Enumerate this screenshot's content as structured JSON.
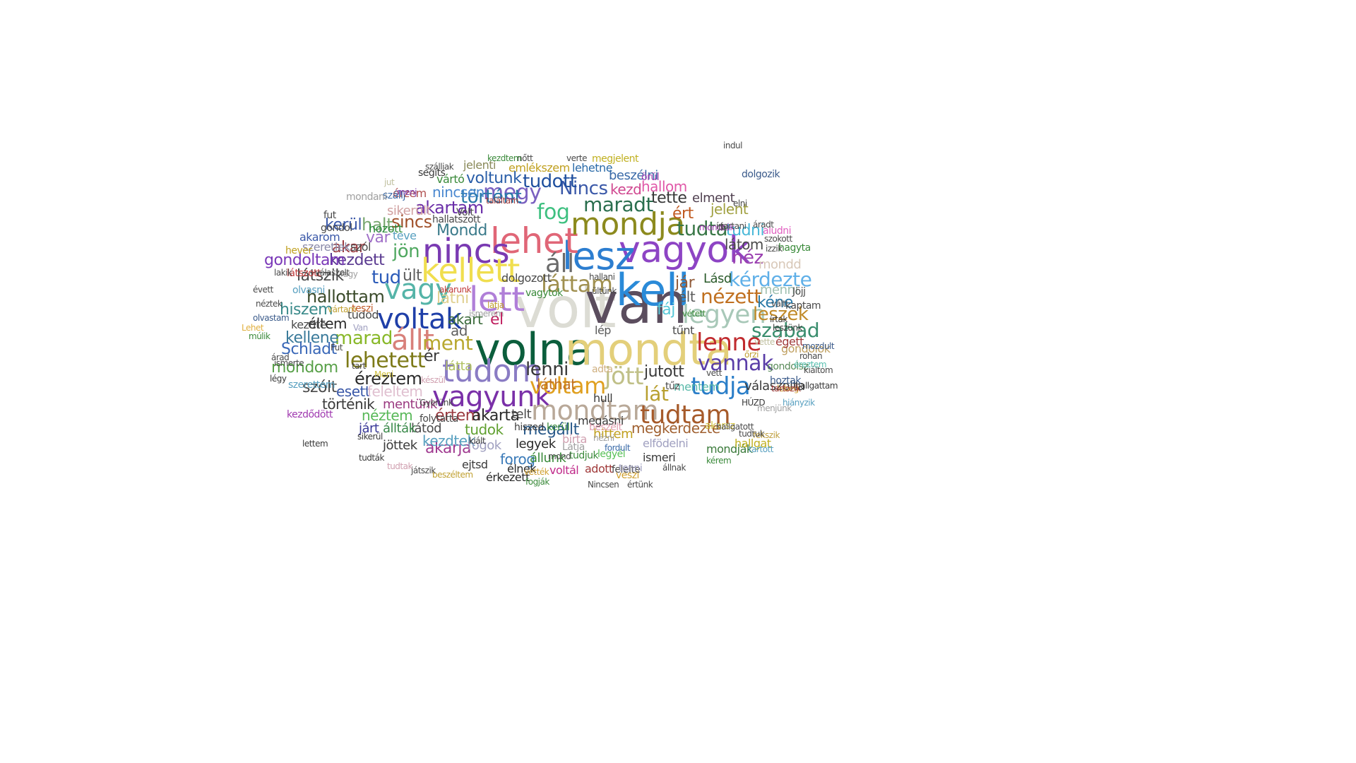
{
  "words": [
    {
      "text": "volt",
      "color": "#dcdcd4"
    },
    {
      "text": "van",
      "color": "#5b4d5e"
    },
    {
      "text": "volna",
      "color": "#0b5e3c"
    },
    {
      "text": "mondta",
      "color": "#e3cf7a"
    },
    {
      "text": "kell",
      "color": "#2a8ad8"
    },
    {
      "text": "vagyok",
      "color": "#8d44c4"
    },
    {
      "text": "lesz",
      "color": "#2d7ed0"
    },
    {
      "text": "lehet",
      "color": "#e06677"
    },
    {
      "text": "nincs",
      "color": "#7a3ab2"
    },
    {
      "text": "kellett",
      "color": "#f0de4e"
    },
    {
      "text": "lett",
      "color": "#b07fd8"
    },
    {
      "text": "vagy",
      "color": "#55b4a8"
    },
    {
      "text": "voltak",
      "color": "#1f3fa8"
    },
    {
      "text": "mondja",
      "color": "#8c8a1e"
    },
    {
      "text": "tudom",
      "color": "#8a7cc4"
    },
    {
      "text": "vagyunk",
      "color": "#7a30a8"
    },
    {
      "text": "mondtam",
      "color": "#b8a898"
    },
    {
      "text": "tudtam",
      "color": "#a65a2a"
    },
    {
      "text": "lenne",
      "color": "#c02a2e"
    },
    {
      "text": "lehetett",
      "color": "#7d7a18"
    },
    {
      "text": "állt",
      "color": "#d8807a"
    },
    {
      "text": "voltam",
      "color": "#e0a020"
    },
    {
      "text": "jött",
      "color": "#c0c088"
    },
    {
      "text": "tudja",
      "color": "#2a7ec8"
    },
    {
      "text": "vannak",
      "color": "#5a3ea8"
    },
    {
      "text": "legyen",
      "color": "#a8c8b8"
    },
    {
      "text": "kérdezte",
      "color": "#60b0e8"
    },
    {
      "text": "láttam",
      "color": "#a09050"
    },
    {
      "text": "áll",
      "color": "#6a6a6a"
    },
    {
      "text": "fog",
      "color": "#3ec080"
    },
    {
      "text": "maradt",
      "color": "#2a6e4e"
    },
    {
      "text": "tudta",
      "color": "#3a7848"
    },
    {
      "text": "Nincs",
      "color": "#3a58a8"
    },
    {
      "text": "megy",
      "color": "#7a60c0"
    },
    {
      "text": "történt",
      "color": "#2878a8"
    },
    {
      "text": "akartam",
      "color": "#6a2ea8"
    },
    {
      "text": "jön",
      "color": "#50a860"
    },
    {
      "text": "tud",
      "color": "#2a5ab8"
    },
    {
      "text": "ült",
      "color": "#606060"
    },
    {
      "text": "sincs",
      "color": "#a0502a"
    },
    {
      "text": "marad",
      "color": "#88b828"
    },
    {
      "text": "ment",
      "color": "#b8a830"
    },
    {
      "text": "lenni",
      "color": "#383838"
    },
    {
      "text": "nézett",
      "color": "#c07020"
    },
    {
      "text": "szabad",
      "color": "#3a8e6e"
    },
    {
      "text": "leszek",
      "color": "#c08a28"
    },
    {
      "text": "lát",
      "color": "#b8a030"
    },
    {
      "text": "jutott",
      "color": "#3a3a3a"
    },
    {
      "text": "néz",
      "color": "#9a40b0"
    },
    {
      "text": "élt",
      "color": "#5a5a5a"
    },
    {
      "text": "jár",
      "color": "#905a38"
    },
    {
      "text": "kéne",
      "color": "#2a7aa8"
    },
    {
      "text": "tudott",
      "color": "#1f4f9e"
    },
    {
      "text": "voltunk",
      "color": "#2a5ea8"
    },
    {
      "text": "nincsen",
      "color": "#4a88d0"
    },
    {
      "text": "kezd",
      "color": "#d04890"
    },
    {
      "text": "hallom",
      "color": "#e058a8"
    },
    {
      "text": "tette",
      "color": "#383838"
    },
    {
      "text": "ért",
      "color": "#c05a20"
    },
    {
      "text": "elment",
      "color": "#504050"
    },
    {
      "text": "jelent",
      "color": "#a0a040"
    },
    {
      "text": "látom",
      "color": "#4a4a4a"
    },
    {
      "text": "tudni",
      "color": "#48b8d8"
    },
    {
      "text": "mondd",
      "color": "#d8c8b8"
    },
    {
      "text": "menni",
      "color": "#a0c0b0"
    },
    {
      "text": "Lásd",
      "color": "#2a5a2a"
    },
    {
      "text": "fáj",
      "color": "#58c8d8"
    },
    {
      "text": "hallottam",
      "color": "#3a4a2a"
    },
    {
      "text": "hiszem",
      "color": "#3a8a8a"
    },
    {
      "text": "kezdett",
      "color": "#5a3a90"
    },
    {
      "text": "látszik",
      "color": "#4a4a4a"
    },
    {
      "text": "éltem",
      "color": "#2a2a2a"
    },
    {
      "text": "kellene",
      "color": "#3a7a9a"
    },
    {
      "text": "Schladt",
      "color": "#3a68b8"
    },
    {
      "text": "mondom",
      "color": "#58a048"
    },
    {
      "text": "akar",
      "color": "#9a3a40"
    },
    {
      "text": "vár",
      "color": "#a070c8"
    },
    {
      "text": "halt",
      "color": "#7aa870"
    },
    {
      "text": "Mondd",
      "color": "#3a7a8a"
    },
    {
      "text": "szól",
      "color": "#4a4a4a"
    },
    {
      "text": "gondoltam",
      "color": "#7a38b8"
    },
    {
      "text": "kerül",
      "color": "#3a58a8"
    },
    {
      "text": "éreztem",
      "color": "#2a2a2a"
    },
    {
      "text": "szólt",
      "color": "#4a4a4a"
    },
    {
      "text": "esett",
      "color": "#3a58a8"
    },
    {
      "text": "feleltem",
      "color": "#e0c0d0"
    },
    {
      "text": "történik",
      "color": "#3a3a3a"
    },
    {
      "text": "akart",
      "color": "#3a6a3a"
    },
    {
      "text": "látni",
      "color": "#e0d090"
    },
    {
      "text": "él",
      "color": "#c02060"
    },
    {
      "text": "ér",
      "color": "#3a3a3a"
    },
    {
      "text": "látta",
      "color": "#b0c060"
    },
    {
      "text": "ad",
      "color": "#606060"
    },
    {
      "text": "mentünk",
      "color": "#9a3a80"
    },
    {
      "text": "értem",
      "color": "#9a3a40"
    },
    {
      "text": "akarta",
      "color": "#2a2a2a"
    },
    {
      "text": "telt",
      "color": "#4a4a4a"
    },
    {
      "text": "megállt",
      "color": "#2a5a8a"
    },
    {
      "text": "legyek",
      "color": "#2a2a2a"
    },
    {
      "text": "láthat",
      "color": "#c07020"
    },
    {
      "text": "megkérdezte",
      "color": "#a06030"
    },
    {
      "text": "válaszolta",
      "color": "#3a3a3a"
    },
    {
      "text": "elfödelni",
      "color": "#a0a0c0"
    },
    {
      "text": "mondják",
      "color": "#3a7a3a"
    },
    {
      "text": "hallgat",
      "color": "#c0b020"
    },
    {
      "text": "tudok",
      "color": "#60a030"
    },
    {
      "text": "néztem",
      "color": "#58b858"
    },
    {
      "text": "látod",
      "color": "#4a4a4a"
    },
    {
      "text": "akarja",
      "color": "#a03a90"
    },
    {
      "text": "forog",
      "color": "#3a7ab8"
    },
    {
      "text": "állunk",
      "color": "#3a8a3a"
    },
    {
      "text": "élnek",
      "color": "#2a2a2a"
    },
    {
      "text": "voltál",
      "color": "#c02a8a"
    },
    {
      "text": "adott",
      "color": "#a03a3a"
    },
    {
      "text": "felelte",
      "color": "#4a4a4a"
    },
    {
      "text": "ismeri",
      "color": "#3a3a3a"
    },
    {
      "text": "érkezett",
      "color": "#2a2a2a"
    },
    {
      "text": "ejtsd",
      "color": "#3a3a3a"
    },
    {
      "text": "jöttek",
      "color": "#3a3a3a"
    },
    {
      "text": "kezdtek",
      "color": "#58a0c0"
    },
    {
      "text": "állták",
      "color": "#3a8a4a"
    },
    {
      "text": "járt",
      "color": "#3a3a98"
    },
    {
      "text": "beszélni",
      "color": "#3a6aa8"
    },
    {
      "text": "lehetne",
      "color": "#2a6aa8"
    },
    {
      "text": "emlékszem",
      "color": "#c0a020"
    },
    {
      "text": "jelenti",
      "color": "#8a8a5a"
    },
    {
      "text": "megjelent",
      "color": "#c0b020"
    },
    {
      "text": "segíts",
      "color": "#3a3a3a"
    },
    {
      "text": "vártó",
      "color": "#3a8a3a"
    },
    {
      "text": "érzem",
      "color": "#b05050"
    },
    {
      "text": "sikerült",
      "color": "#d0a0a0"
    },
    {
      "text": "hozott",
      "color": "#2a8a3a"
    },
    {
      "text": "szeretlek",
      "color": "#8a8aa8"
    },
    {
      "text": "akarom",
      "color": "#3a58a8"
    },
    {
      "text": "látszott",
      "color": "#c03a3a"
    },
    {
      "text": "olvasni",
      "color": "#58a0c0"
    },
    {
      "text": "tudod",
      "color": "#4a4a4a"
    },
    {
      "text": "teszi",
      "color": "#c05a28"
    },
    {
      "text": "kezdte",
      "color": "#4a4a4a"
    },
    {
      "text": "hittem",
      "color": "#c0a020"
    },
    {
      "text": "megásni",
      "color": "#3a3a3a"
    },
    {
      "text": "akarsz",
      "color": "#d0c040"
    },
    {
      "text": "beszélt",
      "color": "#e0a0b0"
    },
    {
      "text": "fogok",
      "color": "#a0a0c0"
    },
    {
      "text": "tudjuk",
      "color": "#3a8a3a"
    },
    {
      "text": "legyél",
      "color": "#58c058"
    },
    {
      "text": "veszi",
      "color": "#d0a030"
    },
    {
      "text": "tenni",
      "color": "#a0a0c0"
    },
    {
      "text": "hull",
      "color": "#3a3a3a"
    },
    {
      "text": "adta",
      "color": "#d0b080"
    },
    {
      "text": "mentem",
      "color": "#58b8a8"
    },
    {
      "text": "tűz",
      "color": "#4a4a4a"
    },
    {
      "text": "lép",
      "color": "#5a5a5a"
    },
    {
      "text": "gondolok",
      "color": "#c0a060"
    },
    {
      "text": "égett",
      "color": "#a03a3a"
    },
    {
      "text": "aludni",
      "color": "#e060c0"
    },
    {
      "text": "hagyta",
      "color": "#3a8a3a"
    },
    {
      "text": "dolgozik",
      "color": "#3a5a8a"
    },
    {
      "text": "gondolsz",
      "color": "#5a8a5a"
    },
    {
      "text": "hoztak",
      "color": "#3a5a8a"
    },
    {
      "text": "lebeg",
      "color": "#d0a030"
    },
    {
      "text": "Jöjj",
      "color": "#4a4a4a"
    },
    {
      "text": "kaptam",
      "color": "#4a4a4a"
    },
    {
      "text": "örül",
      "color": "#a03ab0"
    },
    {
      "text": "jut",
      "color": "#c0c0a0"
    },
    {
      "text": "szállj",
      "color": "#3a6aa8"
    },
    {
      "text": "menj",
      "color": "#7a3ab0"
    },
    {
      "text": "mondani",
      "color": "#a0a0a0"
    },
    {
      "text": "gondol",
      "color": "#4a4a4a"
    },
    {
      "text": "fut",
      "color": "#4a4a4a"
    },
    {
      "text": "hever",
      "color": "#c0a020"
    },
    {
      "text": "fagy",
      "color": "#a0a0a0"
    },
    {
      "text": "lakik",
      "color": "#4a4a4a"
    },
    {
      "text": "évett",
      "color": "#4a4a4a"
    },
    {
      "text": "néztek",
      "color": "#4a4a4a"
    },
    {
      "text": "olvastam",
      "color": "#3a5a8a"
    },
    {
      "text": "Lehet",
      "color": "#e0b040"
    },
    {
      "text": "múlik",
      "color": "#3a8a3a"
    },
    {
      "text": "légy",
      "color": "#3a3a3a"
    },
    {
      "text": "szerettem",
      "color": "#58a0c0"
    },
    {
      "text": "kezdődött",
      "color": "#a03ab0"
    },
    {
      "text": "lettem",
      "color": "#3a3a3a"
    },
    {
      "text": "sikerül",
      "color": "#3a3a3a"
    },
    {
      "text": "kiált",
      "color": "#3a3a3a"
    },
    {
      "text": "hiszed",
      "color": "#3a3a3a"
    },
    {
      "text": "kerül",
      "color": "#3a8a3a"
    },
    {
      "text": "bírta",
      "color": "#d0a0b0"
    },
    {
      "text": "Látja",
      "color": "#a0a0a0"
    },
    {
      "text": "mond",
      "color": "#4a4a4a"
    },
    {
      "text": "nézni",
      "color": "#a0a0a0"
    },
    {
      "text": "fordult",
      "color": "#3a6aa8"
    },
    {
      "text": "hallgatott",
      "color": "#4a4a4a"
    },
    {
      "text": "fekszik",
      "color": "#c0a040"
    },
    {
      "text": "HÚZD",
      "color": "#3a3a3a"
    },
    {
      "text": "tartozik",
      "color": "#a03a3a"
    },
    {
      "text": "hiányzik",
      "color": "#58a0c0"
    },
    {
      "text": "menjünk",
      "color": "#a0a0a0"
    },
    {
      "text": "hallgattam",
      "color": "#3a3a3a"
    },
    {
      "text": "kiáltom",
      "color": "#4a4a4a"
    },
    {
      "text": "rohan",
      "color": "#4a4a4a"
    },
    {
      "text": "mozdult",
      "color": "#3a5a8a"
    },
    {
      "text": "éreztem",
      "color": "#58c0b0"
    },
    {
      "text": "leszünk",
      "color": "#3a3a3a"
    },
    {
      "text": "írtak",
      "color": "#3a3a3a"
    },
    {
      "text": "vált",
      "color": "#4a4a4a"
    },
    {
      "text": "izzik",
      "color": "#4a4a4a"
    },
    {
      "text": "szokott",
      "color": "#4a4a4a"
    },
    {
      "text": "áradt",
      "color": "#4a4a4a"
    },
    {
      "text": "tudtuk",
      "color": "#4a4a4a"
    },
    {
      "text": "tartott",
      "color": "#58a0c0"
    },
    {
      "text": "kérem",
      "color": "#3a8a3a"
    },
    {
      "text": "állnak",
      "color": "#4a4a4a"
    },
    {
      "text": "értünk",
      "color": "#4a4a4a"
    },
    {
      "text": "Nincsen",
      "color": "#4a4a4a"
    },
    {
      "text": "fogják",
      "color": "#3a8a3a"
    },
    {
      "text": "vették",
      "color": "#d0a030"
    },
    {
      "text": "beszéltem",
      "color": "#c0a030"
    },
    {
      "text": "tudták",
      "color": "#3a3a3a"
    },
    {
      "text": "tudtak",
      "color": "#d0a0b0"
    },
    {
      "text": "játszik",
      "color": "#4a4a4a"
    },
    {
      "text": "folytatta",
      "color": "#4a4a4a"
    },
    {
      "text": "Gyerünk",
      "color": "#4a4a4a"
    },
    {
      "text": "készül",
      "color": "#d0a0b0"
    },
    {
      "text": "Meni",
      "color": "#d0c040"
    },
    {
      "text": "tart",
      "color": "#4a4a4a"
    },
    {
      "text": "Fut",
      "color": "#4a4a4a"
    },
    {
      "text": "árad",
      "color": "#4a4a4a"
    },
    {
      "text": "ismerte",
      "color": "#4a4a4a"
    },
    {
      "text": "Van",
      "color": "#a0a0c0"
    },
    {
      "text": "vártam",
      "color": "#c0a030"
    },
    {
      "text": "válaszolt",
      "color": "#4a4a4a"
    },
    {
      "text": "hallani",
      "color": "#4a4a4a"
    },
    {
      "text": "ültünk",
      "color": "#4a4a4a"
    },
    {
      "text": "vétett",
      "color": "#3a8a3a"
    },
    {
      "text": "mondták",
      "color": "#a03ab0"
    },
    {
      "text": "írja",
      "color": "#4a4a4a"
    },
    {
      "text": "elni",
      "color": "#4a4a4a"
    },
    {
      "text": "indul",
      "color": "#4a4a4a"
    },
    {
      "text": "verte",
      "color": "#4a4a4a"
    },
    {
      "text": "nőtt",
      "color": "#4a4a4a"
    },
    {
      "text": "kezdtem",
      "color": "#3a8a3a"
    },
    {
      "text": "szálljak",
      "color": "#4a4a4a"
    },
    {
      "text": "vagytok",
      "color": "#3a8a3a"
    },
    {
      "text": "ismerem",
      "color": "#a0a0a0"
    },
    {
      "text": "akarunk",
      "color": "#c03a3a"
    },
    {
      "text": "dolgozott",
      "color": "#4a4a4a"
    },
    {
      "text": "hallatszott",
      "color": "#4a4a4a"
    },
    {
      "text": "Volt",
      "color": "#4a4a4a"
    },
    {
      "text": "teve",
      "color": "#58a0c0"
    },
    {
      "text": "találtam",
      "color": "#a03a3a"
    },
    {
      "text": "látja",
      "color": "#c0a030"
    },
    {
      "text": "tűnt",
      "color": "#4a4a4a"
    },
    {
      "text": "őrzi",
      "color": "#c0a030"
    },
    {
      "text": "vette",
      "color": "#c0c0a0"
    },
    {
      "text": "tartani",
      "color": "#4a4a4a"
    },
    {
      "text": "vett",
      "color": "#4a4a4a"
    },
    {
      "text": "élt",
      "color": "#4a4a4a"
    },
    {
      "text": "beszél",
      "color": "#a0a0a0"
    },
    {
      "text": "érti",
      "color": "#4a4a4a"
    },
    {
      "text": "ünnep",
      "color": "#c0a030"
    },
    {
      "text": "tudnak",
      "color": "#4a4a4a"
    }
  ]
}
